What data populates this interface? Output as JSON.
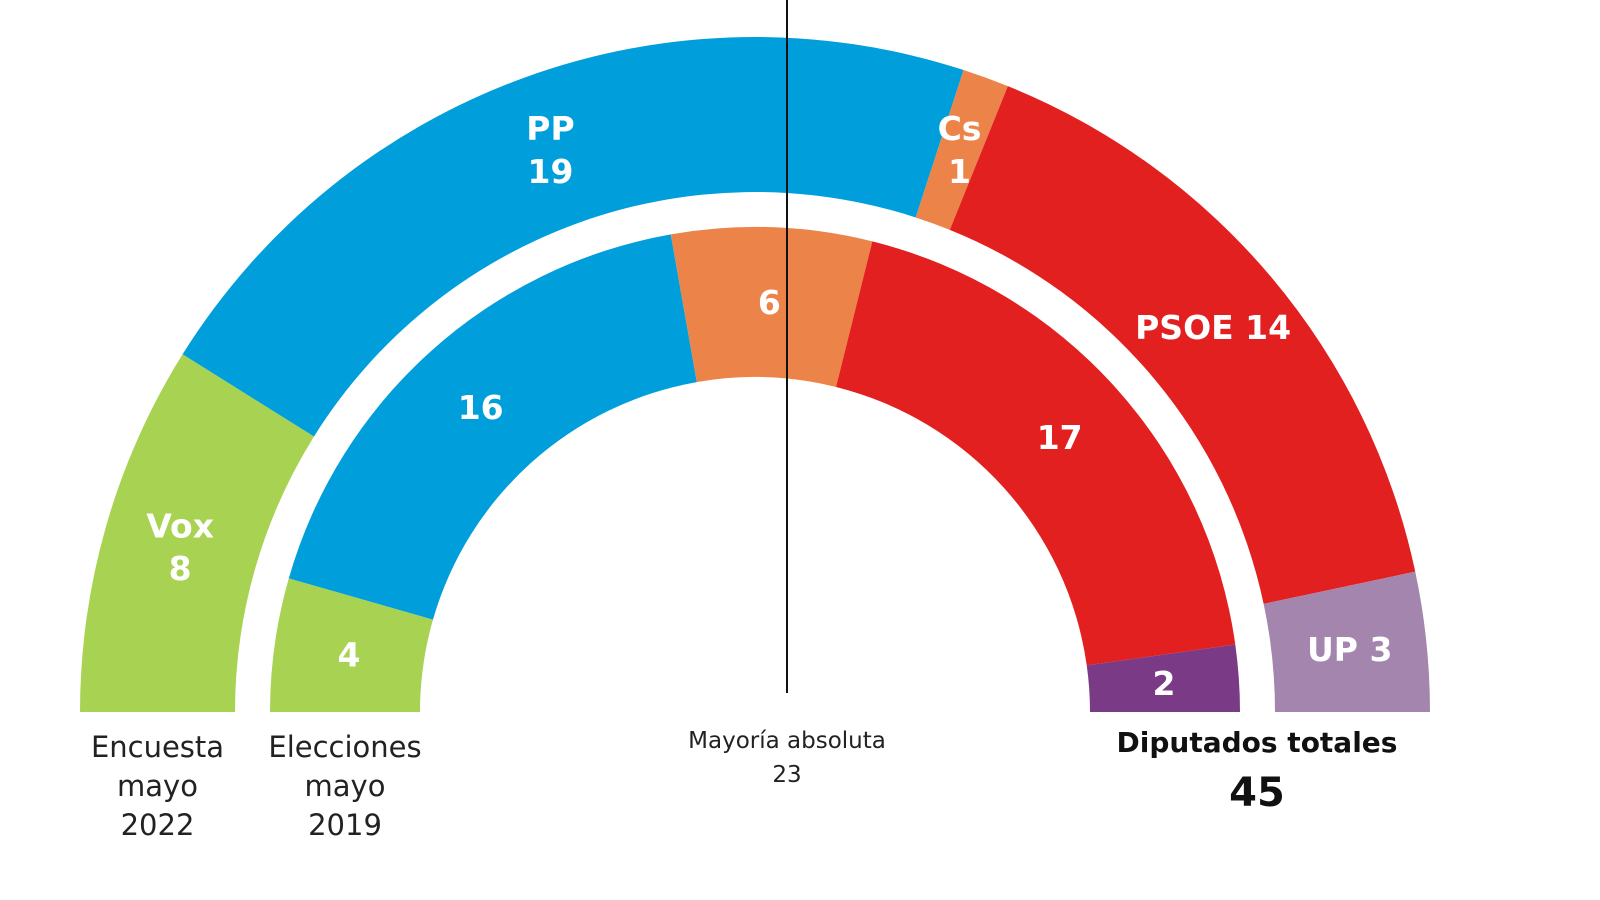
{
  "chart_data": {
    "type": "parliament-semicircle",
    "total_seats": 45,
    "majority": 23,
    "rings": [
      {
        "name": "Encuesta mayo 2022",
        "caption_lines": [
          "Encuesta",
          "mayo",
          "2022"
        ],
        "segments": [
          {
            "party": "Vox",
            "seats": 8,
            "color": "#a8d352",
            "label_lines": [
              "Vox",
              "8"
            ]
          },
          {
            "party": "PP",
            "seats": 19,
            "color": "#009fdb",
            "label_lines": [
              "PP",
              "19"
            ]
          },
          {
            "party": "Cs",
            "seats": 1,
            "color": "#ec844a",
            "label_lines": [
              "Cs",
              "1"
            ]
          },
          {
            "party": "PSOE",
            "seats": 14,
            "color": "#e22020",
            "label_lines": [
              "PSOE 14"
            ]
          },
          {
            "party": "UP",
            "seats": 3,
            "color": "#a485ad",
            "label_lines": [
              "UP 3"
            ]
          }
        ]
      },
      {
        "name": "Elecciones mayo 2019",
        "caption_lines": [
          "Elecciones",
          "mayo",
          "2019"
        ],
        "segments": [
          {
            "party": "Vox",
            "seats": 4,
            "color": "#a8d352",
            "label_lines": [
              "4"
            ]
          },
          {
            "party": "PP",
            "seats": 16,
            "color": "#009fdb",
            "label_lines": [
              "16"
            ]
          },
          {
            "party": "Cs",
            "seats": 6,
            "color": "#ec844a",
            "label_lines": [
              "6"
            ]
          },
          {
            "party": "PSOE",
            "seats": 17,
            "color": "#e22020",
            "label_lines": [
              "17"
            ]
          },
          {
            "party": "UP",
            "seats": 2,
            "color": "#7b3a86",
            "label_lines": [
              "2"
            ]
          }
        ]
      }
    ],
    "majority_line": {
      "label": "Mayoría absoluta",
      "value": "23"
    },
    "total_label": {
      "title": "Diputados totales",
      "value": "45"
    }
  }
}
